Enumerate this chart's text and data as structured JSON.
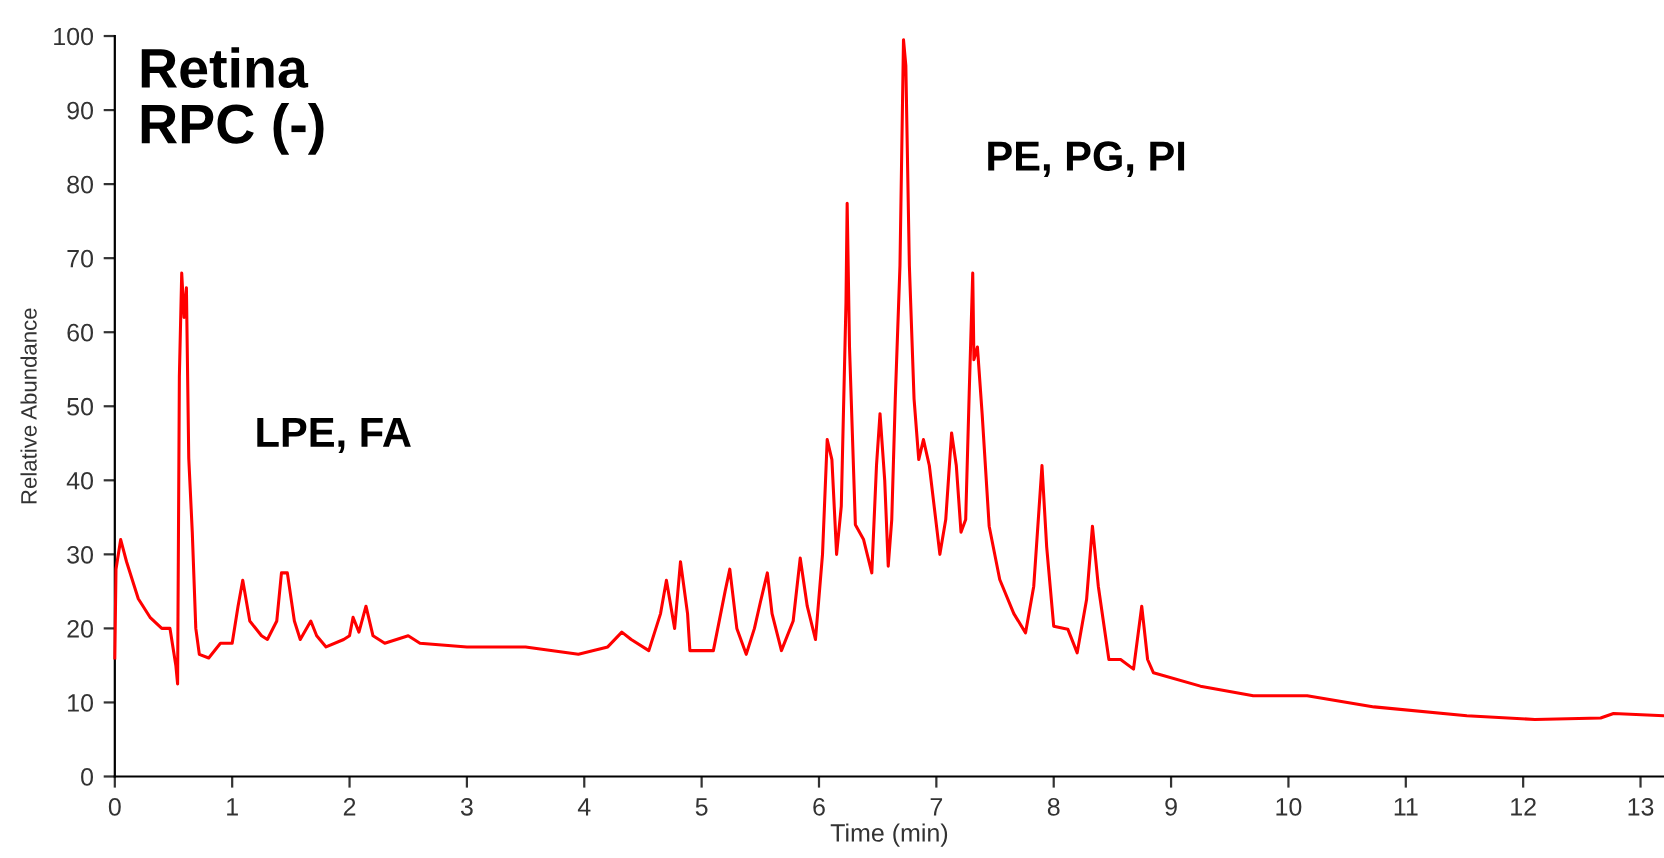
{
  "chart_data": {
    "type": "line",
    "title": "Retina\nRPC (-)",
    "xlabel": "Time (min)",
    "ylabel": "Relative Abundance",
    "annotations": [
      "LPE, FA",
      "PE, PG, PI"
    ],
    "xlim": [
      0,
      13.2
    ],
    "ylim": [
      0,
      100
    ],
    "xticks": [
      0,
      1,
      2,
      3,
      4,
      5,
      6,
      7,
      8,
      9,
      10,
      11,
      12,
      13
    ],
    "yticks": [
      0,
      10,
      20,
      30,
      40,
      50,
      60,
      70,
      80,
      90,
      100
    ],
    "grid": false,
    "legend": false,
    "marker": "none",
    "line_style": "solid",
    "series": [
      {
        "color": "#ff0000",
        "x": [
          0,
          0.01,
          0.05,
          0.1,
          0.2,
          0.3,
          0.4,
          0.47,
          0.52,
          0.535,
          0.55,
          0.57,
          0.59,
          0.61,
          0.63,
          0.66,
          0.69,
          0.72,
          0.8,
          0.9,
          1.0,
          1.05,
          1.09,
          1.15,
          1.25,
          1.3,
          1.38,
          1.42,
          1.47,
          1.53,
          1.58,
          1.67,
          1.72,
          1.8,
          1.95,
          2.0,
          2.03,
          2.08,
          2.14,
          2.2,
          2.3,
          2.5,
          2.6,
          3.0,
          3.5,
          3.95,
          4.2,
          4.32,
          4.4,
          4.55,
          4.65,
          4.7,
          4.77,
          4.82,
          4.88,
          4.9,
          5.1,
          5.2,
          5.24,
          5.3,
          5.38,
          5.45,
          5.5,
          5.56,
          5.6,
          5.68,
          5.78,
          5.84,
          5.9,
          5.97,
          6.03,
          6.07,
          6.11,
          6.15,
          6.19,
          6.23,
          6.24,
          6.26,
          6.31,
          6.38,
          6.45,
          6.49,
          6.52,
          6.56,
          6.59,
          6.62,
          6.65,
          6.69,
          6.72,
          6.74,
          6.77,
          6.81,
          6.85,
          6.89,
          6.94,
          7.03,
          7.08,
          7.13,
          7.17,
          7.21,
          7.25,
          7.28,
          7.31,
          7.32,
          7.35,
          7.39,
          7.45,
          7.54,
          7.66,
          7.76,
          7.83,
          7.9,
          7.94,
          8.0,
          8.12,
          8.2,
          8.28,
          8.33,
          8.38,
          8.47,
          8.57,
          8.68,
          8.75,
          8.8,
          8.85,
          9.25,
          9.7,
          10.16,
          10.73,
          11.52,
          12.1,
          12.66,
          12.77,
          13.2
        ],
        "values": [
          16,
          28,
          32,
          29,
          24,
          21.5,
          20,
          20,
          15,
          12.5,
          54,
          68,
          62,
          66,
          43,
          33,
          20,
          16.5,
          16,
          18,
          18,
          23,
          26.5,
          21,
          19,
          18.5,
          21,
          27.5,
          27.5,
          21,
          18.5,
          21,
          19,
          17.5,
          18.5,
          19,
          21.5,
          19.5,
          23,
          19,
          18,
          19,
          18,
          17.5,
          17.5,
          16.5,
          17.5,
          19.5,
          18.5,
          17,
          22,
          26.5,
          20,
          29,
          22,
          17,
          17,
          25,
          28,
          20,
          16.5,
          20,
          23.5,
          27.5,
          22,
          17,
          21,
          29.5,
          23,
          18.5,
          30,
          45.5,
          42.8,
          30,
          36.5,
          64,
          77.4,
          58,
          34,
          32,
          27.5,
          42,
          49,
          40,
          28.4,
          34.7,
          51,
          69,
          99.5,
          96,
          69,
          51,
          42.8,
          45.5,
          42,
          30,
          34.7,
          46.4,
          42,
          33,
          34.7,
          51.8,
          68,
          56.3,
          58,
          49,
          33.8,
          26.6,
          22,
          19.4,
          25.7,
          42,
          31,
          20.3,
          19.9,
          16.7,
          23.9,
          33.8,
          25.7,
          15.8,
          15.8,
          14.5,
          23,
          15.8,
          14,
          12.2,
          10.9,
          10.9,
          9.4,
          8.2,
          7.7,
          7.9,
          8.5,
          8.2
        ]
      }
    ]
  }
}
